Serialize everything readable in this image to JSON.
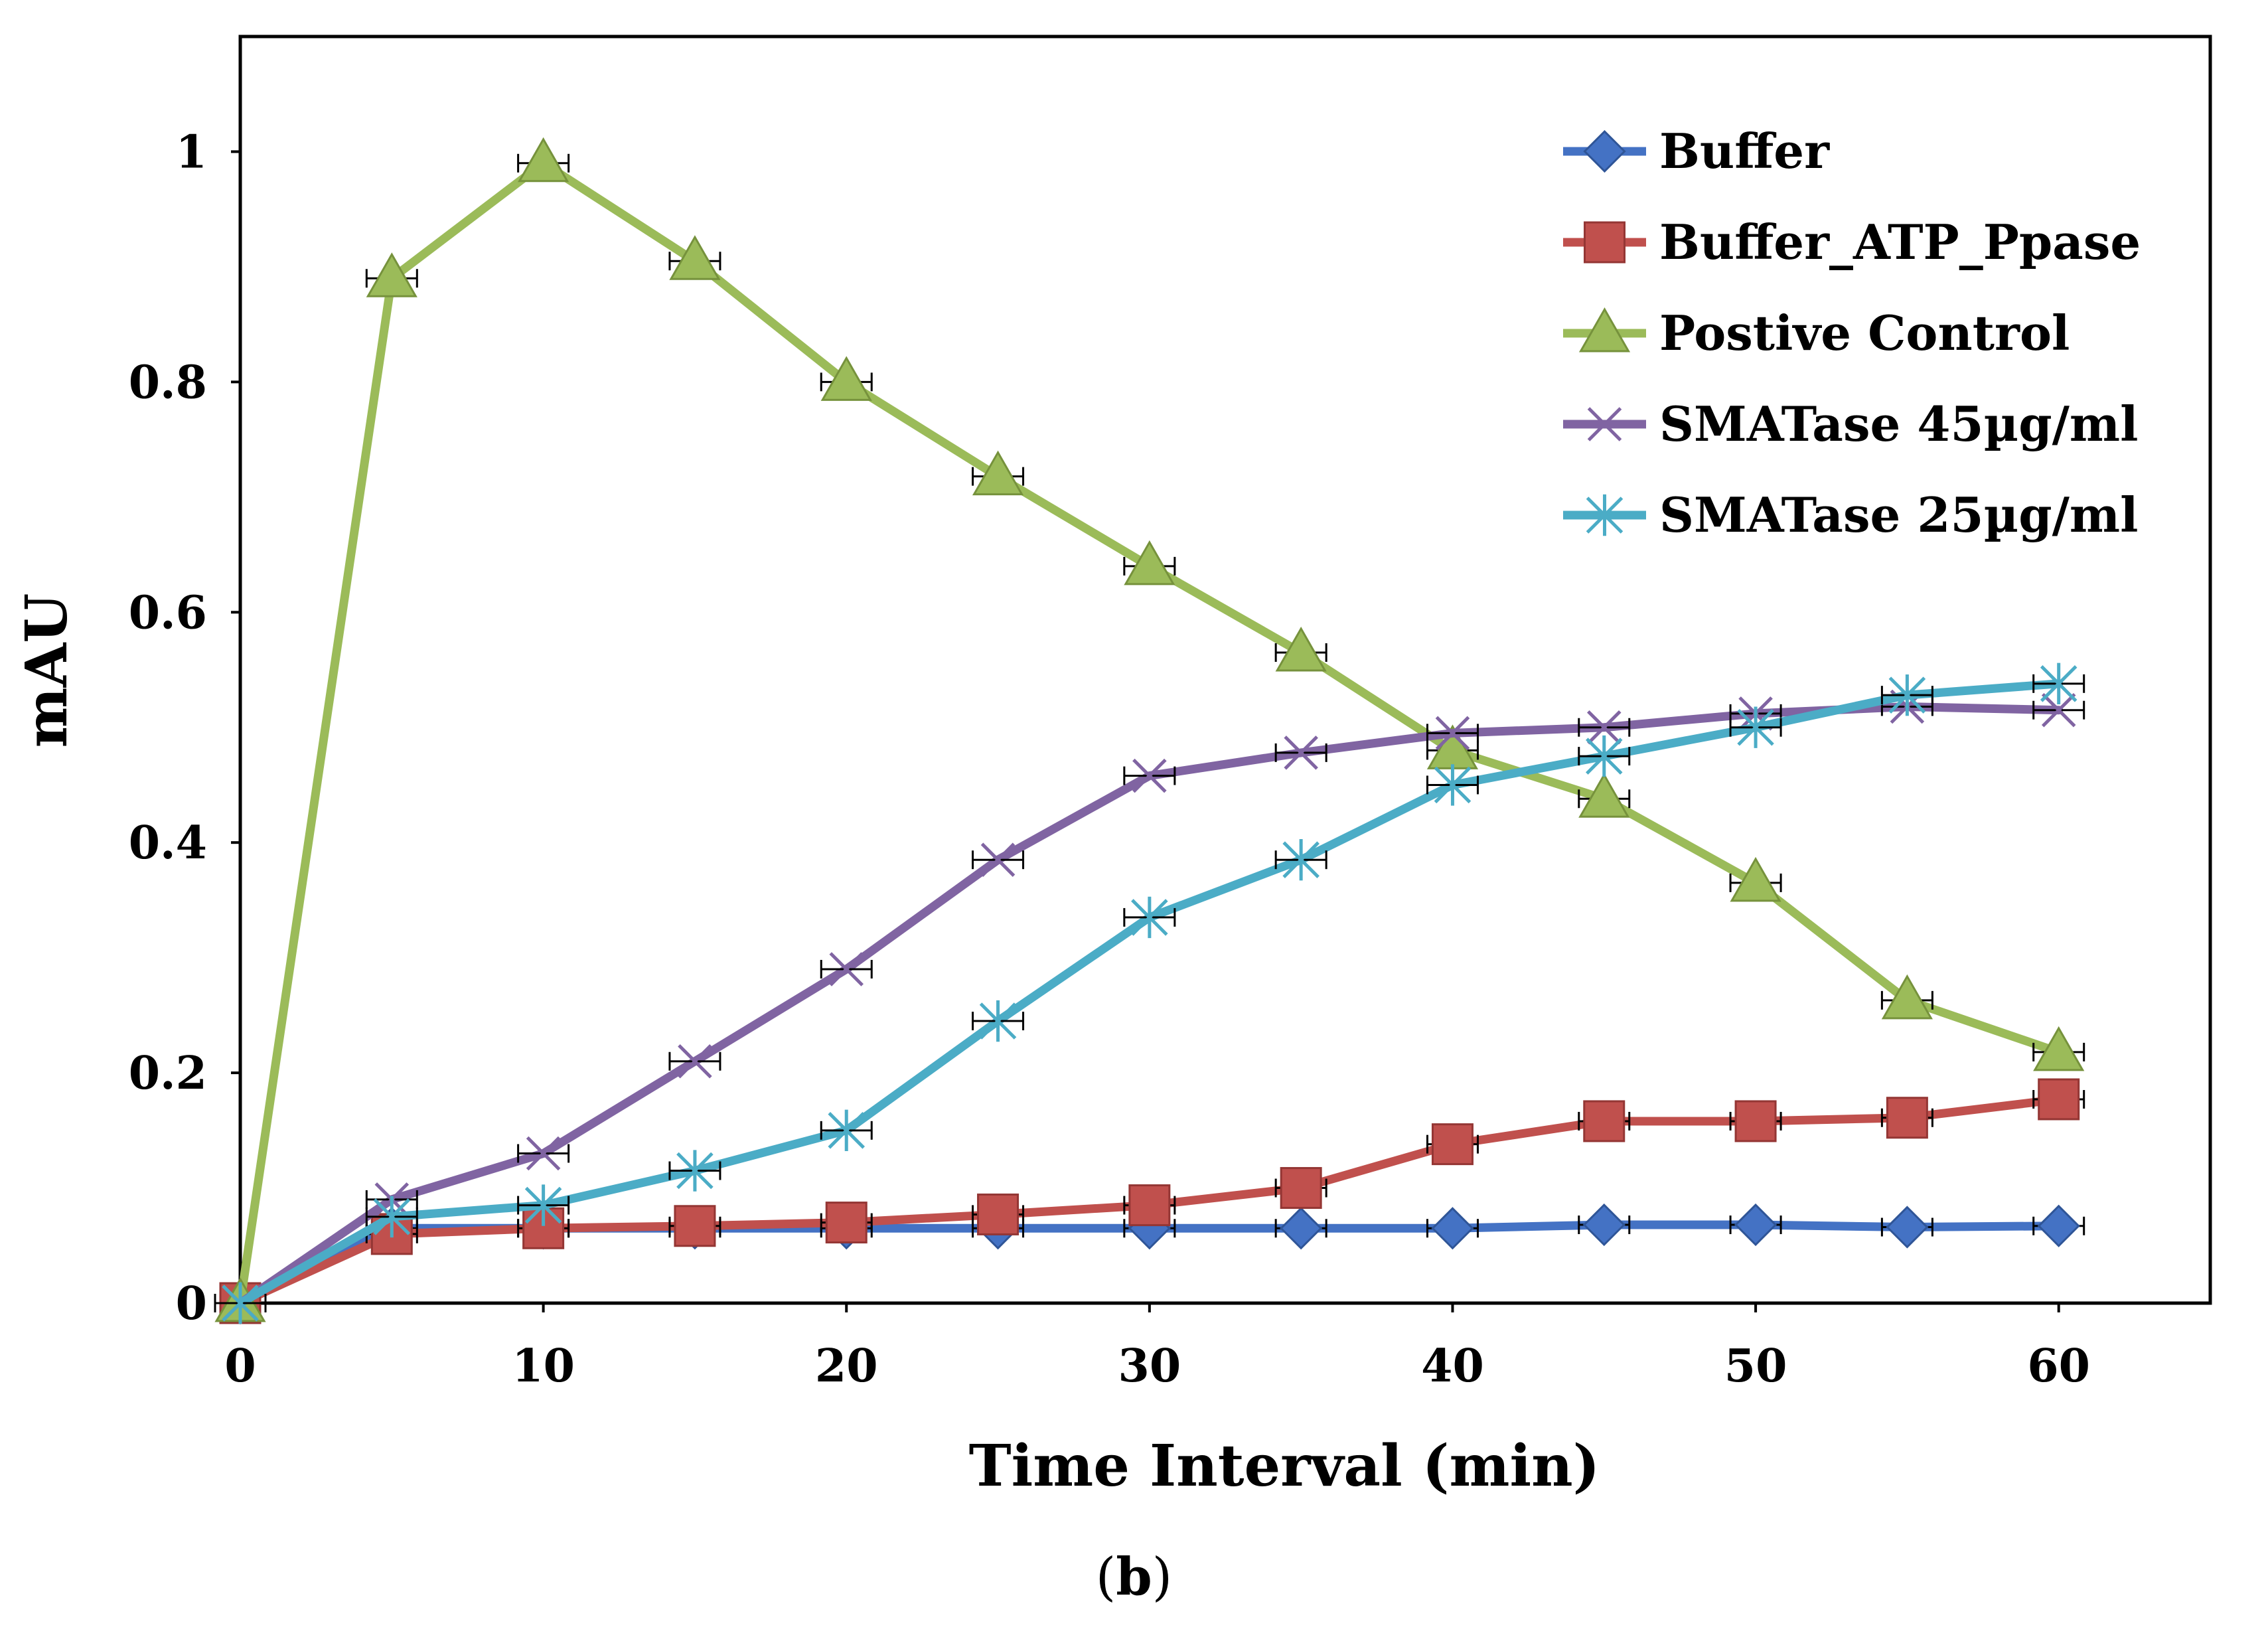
{
  "chart_data": {
    "type": "line",
    "title": "",
    "xlabel": "Time Interval (min)",
    "ylabel": "mAU",
    "xlim": [
      0,
      65
    ],
    "ylim": [
      0,
      1.1
    ],
    "x_ticks": [
      0,
      10,
      20,
      30,
      40,
      50,
      60
    ],
    "y_ticks": [
      0,
      0.2,
      0.4,
      0.6,
      0.8,
      1
    ],
    "y_tick_labels": [
      "0",
      "0.2",
      "0.4",
      "0.6",
      "0.8",
      "1"
    ],
    "x": [
      0,
      5,
      10,
      15,
      20,
      25,
      30,
      35,
      40,
      45,
      50,
      55,
      60
    ],
    "legend_position": "top-right",
    "series": [
      {
        "name": "Buffer",
        "color": "#4472C4",
        "marker": "diamond",
        "values": [
          0,
          0.065,
          0.065,
          0.065,
          0.065,
          0.065,
          0.065,
          0.065,
          0.065,
          0.068,
          0.068,
          0.066,
          0.067
        ]
      },
      {
        "name": "Buffer_ATP_Ppase",
        "color": "#C0504D",
        "marker": "square",
        "values": [
          0,
          0.06,
          0.065,
          0.067,
          0.07,
          0.077,
          0.085,
          0.1,
          0.138,
          0.158,
          0.158,
          0.161,
          0.177
        ]
      },
      {
        "name": "Postive Control",
        "color": "#9BBB59",
        "marker": "triangle",
        "values": [
          0,
          0.89,
          0.99,
          0.905,
          0.8,
          0.718,
          0.64,
          0.565,
          0.48,
          0.438,
          0.365,
          0.263,
          0.218
        ]
      },
      {
        "name": "SMATase 45µg/ml",
        "color": "#8064A2",
        "marker": "x",
        "values": [
          0,
          0.09,
          0.13,
          0.21,
          0.29,
          0.385,
          0.458,
          0.478,
          0.495,
          0.5,
          0.512,
          0.518,
          0.515
        ]
      },
      {
        "name": "SMATase 25µg/ml",
        "color": "#4BACC6",
        "marker": "star",
        "values": [
          0,
          0.075,
          0.085,
          0.115,
          0.15,
          0.245,
          0.335,
          0.385,
          0.45,
          0.475,
          0.5,
          0.528,
          0.538
        ]
      }
    ]
  },
  "caption": {
    "open": "(",
    "letter": "b",
    "close": ")"
  }
}
